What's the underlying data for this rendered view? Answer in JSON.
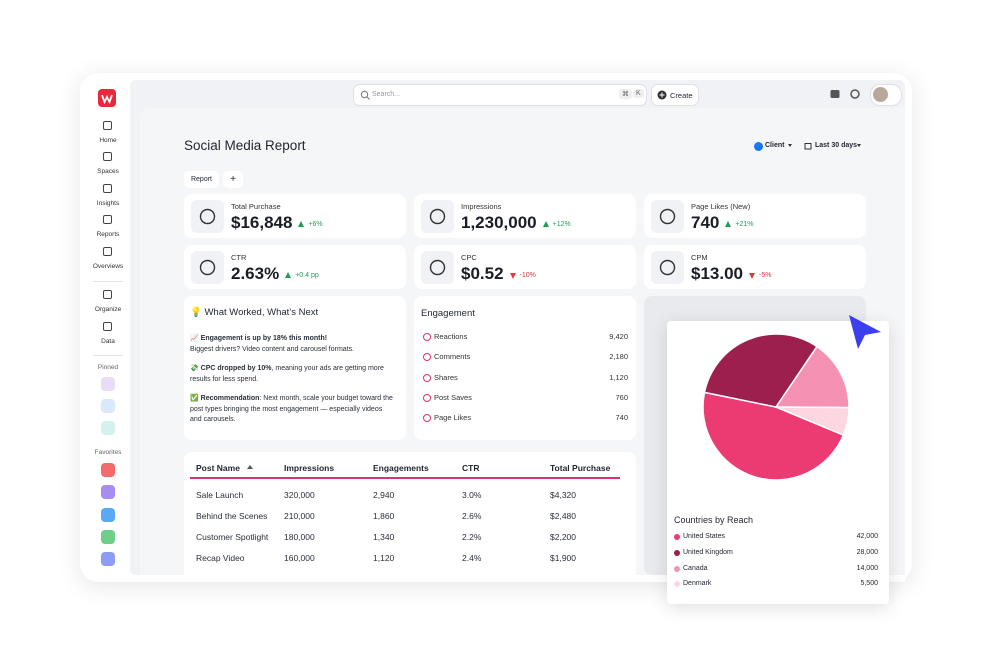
{
  "sidebar": {
    "items": [
      "Home",
      "Spaces",
      "Insights",
      "Reports",
      "Overviews",
      "Organize",
      "Data"
    ],
    "pinned_label": "Pinned",
    "favorites_label": "Favorites"
  },
  "topbar": {
    "search_placeholder": "Search...",
    "shortcut": [
      "⌘",
      "K"
    ],
    "create": "Create"
  },
  "header": {
    "title": "Social Media Report",
    "client": "Client",
    "range": "Last 30 days"
  },
  "tabs": [
    "Report",
    "+"
  ],
  "kpis": [
    {
      "label": "Total Purchase",
      "value": "$16,848",
      "change": "+6%",
      "direction": "up"
    },
    {
      "label": "Impressions",
      "value": "1,230,000",
      "change": "+12%",
      "direction": "up"
    },
    {
      "label": "Page Likes (New)",
      "value": "740",
      "change": "+21%",
      "direction": "up"
    },
    {
      "label": "CTR",
      "value": "2.63%",
      "change": "+0.4 pp",
      "direction": "up"
    },
    {
      "label": "CPC",
      "value": "$0.52",
      "change": "-10%",
      "direction": "down"
    },
    {
      "label": "CPM",
      "value": "$13.00",
      "change": "-5%",
      "direction": "down"
    }
  ],
  "insights": {
    "title": "💡 What Worked, What’s Next",
    "items": [
      {
        "icon": "📈",
        "bold": "Engagement is up by 18% this month!",
        "text": "Biggest drivers? Video content and carousel formats."
      },
      {
        "icon": "💸",
        "bold": "CPC dropped by 10%",
        "text": ", meaning your ads are getting more results for less spend."
      },
      {
        "icon": "✅",
        "bold": "Recommendation",
        "text": ": Next month, scale your budget toward the post types bringing the most engagement — especially videos and carousels."
      }
    ]
  },
  "engagement": {
    "title": "Engagement",
    "rows": [
      {
        "label": "Reactions",
        "value": "9,420"
      },
      {
        "label": "Comments",
        "value": "2,180"
      },
      {
        "label": "Shares",
        "value": "1,120"
      },
      {
        "label": "Post Saves",
        "value": "760"
      },
      {
        "label": "Page Likes",
        "value": "740"
      }
    ]
  },
  "table": {
    "columns": [
      "Post Name",
      "Impressions",
      "Engagements",
      "CTR",
      "Total Purchase"
    ],
    "rows": [
      [
        "Sale Launch",
        "320,000",
        "2,940",
        "3.0%",
        "$4,320"
      ],
      [
        "Behind the Scenes",
        "210,000",
        "1,860",
        "2.6%",
        "$2,480"
      ],
      [
        "Customer Spotlight",
        "180,000",
        "1,340",
        "2.2%",
        "$2,200"
      ],
      [
        "Recap Video",
        "160,000",
        "1,120",
        "2.4%",
        "$1,900"
      ]
    ]
  },
  "chart_data": {
    "type": "pie",
    "title": "Countries by Reach",
    "categories": [
      "United States",
      "United Kingdom",
      "Canada",
      "Denmark"
    ],
    "values": [
      42000,
      28000,
      14000,
      5500
    ],
    "value_labels": [
      "42,000",
      "28,000",
      "14,000",
      "5,500"
    ],
    "colors": [
      "#ec3a73",
      "#9c1f4d",
      "#f591b2",
      "#fcd6e1"
    ]
  }
}
